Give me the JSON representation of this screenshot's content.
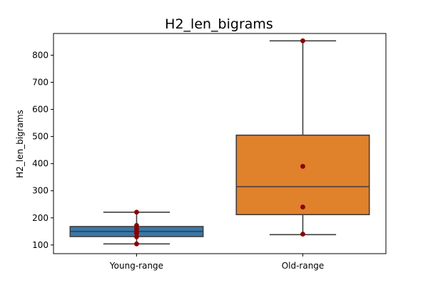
{
  "chart_data": {
    "type": "box",
    "title": "H2_len_bigrams",
    "xlabel": "",
    "ylabel": "H2_len_bigrams",
    "ylim": [
      68,
      880
    ],
    "yticks": [
      100,
      200,
      300,
      400,
      500,
      600,
      700,
      800
    ],
    "grid": false,
    "categories": [
      "Young-range",
      "Old-range"
    ],
    "boxes": [
      {
        "category": "Young-range",
        "color": "#3a77a8",
        "whisker_low": 104,
        "q1": 131,
        "median": 150,
        "q3": 168,
        "whisker_high": 221,
        "points": [
          221,
          172,
          160,
          157,
          147,
          143,
          130,
          104
        ]
      },
      {
        "category": "Old-range",
        "color": "#e0812c",
        "whisker_low": 138,
        "q1": 212,
        "median": 315,
        "q3": 505,
        "whisker_high": 853,
        "points": [
          853,
          390,
          240,
          140
        ]
      }
    ],
    "point_color": "#8b0000",
    "line_color": "#3f3f3f"
  }
}
